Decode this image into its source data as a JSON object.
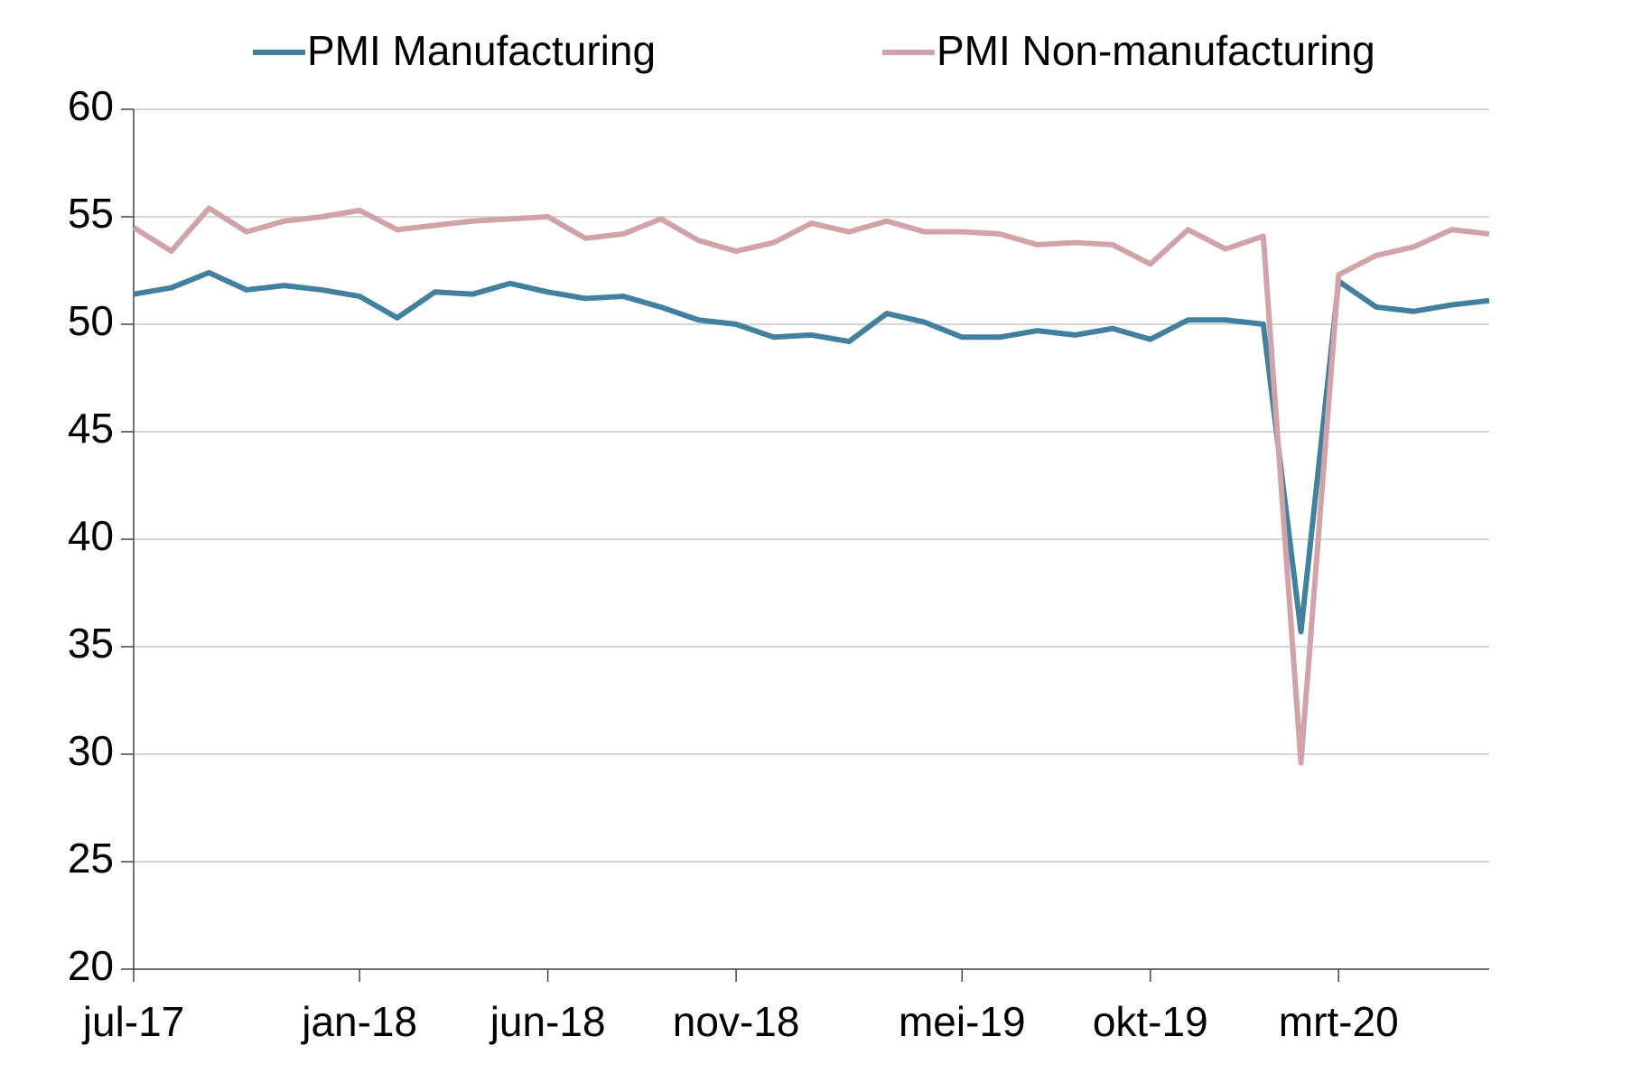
{
  "chart_data": {
    "type": "line",
    "categories": [
      "jul-17",
      null,
      null,
      null,
      null,
      null,
      "jan-18",
      null,
      null,
      null,
      null,
      "jun-18",
      null,
      null,
      null,
      null,
      "nov-18",
      null,
      null,
      null,
      null,
      null,
      "mei-19",
      null,
      null,
      null,
      null,
      "okt-19",
      null,
      null,
      null,
      null,
      "mrt-20",
      null,
      null,
      null,
      null
    ],
    "series": [
      {
        "name": "PMI Manufacturing",
        "color": "#41809f",
        "values": [
          51.4,
          51.7,
          52.4,
          51.6,
          51.8,
          51.6,
          51.3,
          50.3,
          51.5,
          51.4,
          51.9,
          51.5,
          51.2,
          51.3,
          50.8,
          50.2,
          50.0,
          49.4,
          49.5,
          49.2,
          50.5,
          50.1,
          49.4,
          49.4,
          49.7,
          49.5,
          49.8,
          49.3,
          50.2,
          50.2,
          50.0,
          35.7,
          52.0,
          50.8,
          50.6,
          50.9,
          51.1
        ]
      },
      {
        "name": "PMI Non-manufacturing",
        "color": "#d1a3a8",
        "values": [
          54.5,
          53.4,
          55.4,
          54.3,
          54.8,
          55.0,
          55.3,
          54.4,
          54.6,
          54.8,
          54.9,
          55.0,
          54.0,
          54.2,
          54.9,
          53.9,
          53.4,
          53.8,
          54.7,
          54.3,
          54.8,
          54.3,
          54.3,
          54.2,
          53.7,
          53.8,
          53.7,
          52.8,
          54.4,
          53.5,
          54.1,
          29.6,
          52.3,
          53.2,
          53.6,
          54.4,
          54.2
        ]
      }
    ],
    "ylim": [
      20,
      60
    ],
    "yticks": [
      20,
      25,
      30,
      35,
      40,
      45,
      50,
      55,
      60
    ],
    "grid": true,
    "legend": "top"
  }
}
